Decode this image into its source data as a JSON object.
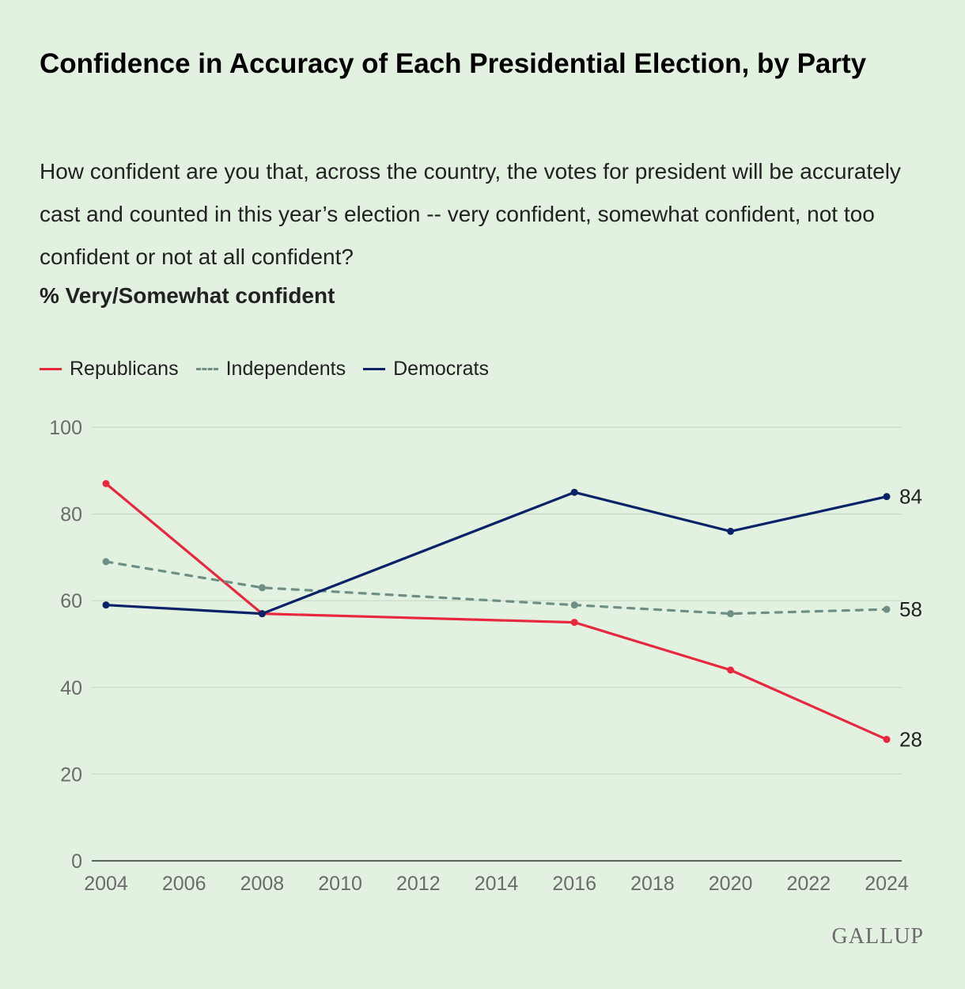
{
  "header": {
    "title": "Confidence in Accuracy of Each Presidential Election, by Party",
    "subtitle": "How confident are you that, across the country, the votes for president will be accurately cast and counted in this year’s election -- very confident, somewhat confident, not too confident or not at all confident?",
    "measure": "% Very/Somewhat confident"
  },
  "legend": [
    {
      "label": "Republicans",
      "style": "solid",
      "color": "#e8283e"
    },
    {
      "label": "Independents",
      "style": "dashed",
      "color": "#6f8f86"
    },
    {
      "label": "Democrats",
      "style": "solid",
      "color": "#0b2268"
    }
  ],
  "source": "GALLUP",
  "chart_data": {
    "type": "line",
    "title": "Confidence in Accuracy of Each Presidential Election, by Party",
    "ylabel": "% Very/Somewhat confident",
    "xlim": [
      2004,
      2024
    ],
    "ylim": [
      0,
      100
    ],
    "x_ticks": [
      "2004",
      "2006",
      "2008",
      "2010",
      "2012",
      "2014",
      "2016",
      "2018",
      "2020",
      "2022",
      "2024"
    ],
    "y_ticks": [
      "0",
      "20",
      "40",
      "60",
      "80",
      "100"
    ],
    "grid": true,
    "legend_position": "top-left",
    "series": [
      {
        "name": "Republicans",
        "color": "#e8283e",
        "dashed": false,
        "x": [
          2004,
          2008,
          2016,
          2020,
          2024
        ],
        "values": [
          87,
          57,
          55,
          44,
          28
        ],
        "end_label": "28"
      },
      {
        "name": "Independents",
        "color": "#6f8f86",
        "dashed": true,
        "x": [
          2004,
          2008,
          2016,
          2020,
          2024
        ],
        "values": [
          69,
          63,
          59,
          57,
          58
        ],
        "end_label": "58"
      },
      {
        "name": "Democrats",
        "color": "#0b2268",
        "dashed": false,
        "x": [
          2004,
          2008,
          2016,
          2020,
          2024
        ],
        "values": [
          59,
          57,
          85,
          76,
          84
        ],
        "end_label": "84"
      }
    ]
  }
}
